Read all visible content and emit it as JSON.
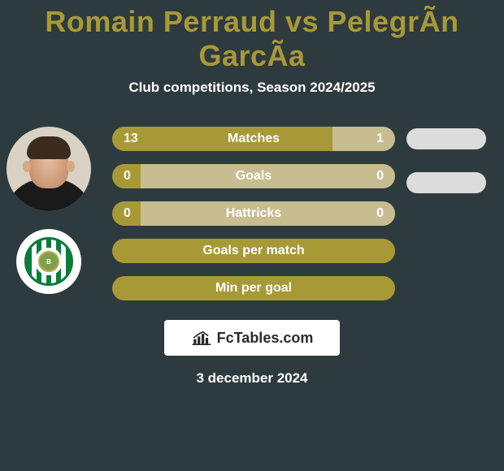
{
  "title_color": "#a89937",
  "title": "Romain Perraud vs PelegrÃ­n GarcÃ­a",
  "subtitle": "Club competitions, Season 2024/2025",
  "player1": {
    "name": "Romain Perraud"
  },
  "player2": {
    "name": "PelegrÃ­n GarcÃ­a"
  },
  "colors": {
    "p1": "#a89937",
    "p2": "#c7bd90",
    "oval_p2": "#dcdcdc",
    "background": "#2e3b3e"
  },
  "stats": [
    {
      "label": "Matches",
      "p1": "13",
      "p2": "1",
      "p1_share": 0.78,
      "has_values": true,
      "show_oval": true
    },
    {
      "label": "Goals",
      "p1": "0",
      "p2": "0",
      "p1_share": 0.1,
      "has_values": true,
      "show_oval": true
    },
    {
      "label": "Hattricks",
      "p1": "0",
      "p2": "0",
      "p1_share": 0.1,
      "has_values": true,
      "show_oval": false
    },
    {
      "label": "Goals per match",
      "p1": "",
      "p2": "",
      "p1_share": 1.0,
      "has_values": false,
      "show_oval": false
    },
    {
      "label": "Min per goal",
      "p1": "",
      "p2": "",
      "p1_share": 1.0,
      "has_values": false,
      "show_oval": false
    }
  ],
  "branding": "FcTables.com",
  "date": "3 december 2024"
}
